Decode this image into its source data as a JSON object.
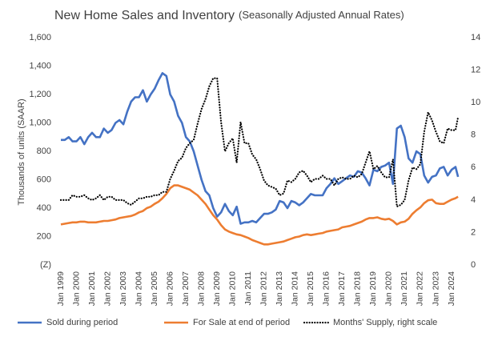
{
  "chart_data": {
    "type": "line",
    "title": "New Home Sales and Inventory",
    "subtitle": "(Seasonally Adjusted Annual Rates)",
    "y_label": "Thousands of units (SAAR)",
    "x": [
      "1999-01",
      "1999-04",
      "1999-07",
      "1999-10",
      "2000-01",
      "2000-04",
      "2000-07",
      "2000-10",
      "2001-01",
      "2001-04",
      "2001-07",
      "2001-10",
      "2002-01",
      "2002-04",
      "2002-07",
      "2002-10",
      "2003-01",
      "2003-04",
      "2003-07",
      "2003-10",
      "2004-01",
      "2004-04",
      "2004-07",
      "2004-10",
      "2005-01",
      "2005-04",
      "2005-07",
      "2005-10",
      "2006-01",
      "2006-04",
      "2006-07",
      "2006-10",
      "2007-01",
      "2007-04",
      "2007-07",
      "2007-10",
      "2008-01",
      "2008-04",
      "2008-07",
      "2008-10",
      "2009-01",
      "2009-04",
      "2009-07",
      "2009-10",
      "2010-01",
      "2010-04",
      "2010-07",
      "2010-10",
      "2011-01",
      "2011-04",
      "2011-07",
      "2011-10",
      "2012-01",
      "2012-04",
      "2012-07",
      "2012-10",
      "2013-01",
      "2013-04",
      "2013-07",
      "2013-10",
      "2014-01",
      "2014-04",
      "2014-07",
      "2014-10",
      "2015-01",
      "2015-04",
      "2015-07",
      "2015-10",
      "2016-01",
      "2016-04",
      "2016-07",
      "2016-10",
      "2017-01",
      "2017-04",
      "2017-07",
      "2017-10",
      "2018-01",
      "2018-04",
      "2018-07",
      "2018-10",
      "2019-01",
      "2019-04",
      "2019-07",
      "2019-10",
      "2020-01",
      "2020-04",
      "2020-07",
      "2020-10",
      "2021-01",
      "2021-04",
      "2021-07",
      "2021-10",
      "2022-01",
      "2022-04",
      "2022-07",
      "2022-10",
      "2023-01",
      "2023-04",
      "2023-07",
      "2023-10",
      "2024-01",
      "2024-04",
      "2024-06"
    ],
    "series": [
      {
        "name": "Sold during period",
        "color": "#4472c4",
        "dash": "solid",
        "values": [
          880,
          880,
          900,
          870,
          870,
          900,
          850,
          900,
          930,
          900,
          900,
          960,
          930,
          950,
          1000,
          1020,
          990,
          1080,
          1150,
          1180,
          1180,
          1230,
          1150,
          1200,
          1240,
          1300,
          1350,
          1330,
          1200,
          1150,
          1050,
          1000,
          900,
          870,
          800,
          700,
          600,
          520,
          490,
          400,
          340,
          370,
          430,
          380,
          350,
          410,
          290,
          300,
          300,
          310,
          300,
          330,
          360,
          360,
          370,
          390,
          450,
          440,
          400,
          450,
          440,
          420,
          440,
          470,
          500,
          490,
          490,
          490,
          540,
          570,
          610,
          570,
          590,
          610,
          630,
          620,
          660,
          650,
          610,
          560,
          670,
          660,
          690,
          700,
          720,
          570,
          960,
          980,
          900,
          750,
          720,
          800,
          780,
          630,
          580,
          620,
          630,
          680,
          690,
          630,
          670,
          690,
          620
        ]
      },
      {
        "name": "For Sale at end of period",
        "color": "#ed7d31",
        "dash": "solid",
        "values": [
          285,
          290,
          295,
          300,
          300,
          305,
          305,
          300,
          300,
          300,
          305,
          310,
          310,
          315,
          320,
          330,
          335,
          340,
          345,
          355,
          370,
          380,
          400,
          410,
          430,
          445,
          470,
          500,
          540,
          560,
          560,
          550,
          540,
          530,
          510,
          490,
          460,
          430,
          390,
          350,
          320,
          280,
          250,
          235,
          225,
          215,
          210,
          200,
          190,
          175,
          165,
          155,
          145,
          145,
          150,
          155,
          160,
          165,
          175,
          185,
          195,
          200,
          210,
          215,
          210,
          215,
          220,
          225,
          235,
          240,
          245,
          250,
          265,
          270,
          275,
          285,
          295,
          305,
          320,
          330,
          330,
          335,
          325,
          320,
          325,
          310,
          285,
          300,
          305,
          325,
          360,
          385,
          405,
          435,
          455,
          460,
          435,
          430,
          430,
          445,
          460,
          470,
          480
        ]
      },
      {
        "name": "Months' Supply, right scale",
        "color": "#000000",
        "dash": "dotted",
        "axis": "y2",
        "values": [
          4.0,
          4.0,
          4.0,
          4.3,
          4.2,
          4.2,
          4.3,
          4.1,
          4.0,
          4.1,
          4.3,
          4.0,
          4.2,
          4.2,
          4.0,
          4.0,
          4.0,
          3.8,
          3.7,
          3.9,
          4.1,
          4.1,
          4.2,
          4.2,
          4.3,
          4.3,
          4.5,
          4.5,
          5.3,
          5.8,
          6.4,
          6.6,
          7.2,
          7.5,
          7.7,
          8.7,
          9.6,
          10.2,
          11.0,
          11.5,
          11.5,
          8.8,
          7.0,
          7.5,
          7.8,
          6.3,
          8.8,
          7.5,
          7.5,
          6.8,
          6.5,
          5.9,
          5.2,
          4.9,
          4.8,
          4.7,
          4.3,
          4.4,
          5.2,
          5.1,
          5.3,
          5.7,
          5.8,
          5.5,
          5.1,
          5.3,
          5.3,
          5.5,
          5.3,
          5.3,
          4.9,
          5.3,
          5.4,
          5.3,
          5.3,
          5.5,
          5.4,
          5.6,
          6.3,
          7.0,
          5.9,
          6.1,
          5.7,
          5.4,
          5.4,
          6.5,
          3.6,
          3.7,
          4.0,
          5.2,
          6.0,
          5.9,
          6.2,
          8.2,
          9.4,
          8.9,
          8.2,
          7.6,
          7.5,
          8.4,
          8.3,
          8.3,
          9.1
        ]
      }
    ],
    "ylim": [
      0,
      1600
    ],
    "yticks": [
      {
        "value": 0,
        "label": "(Z)"
      },
      200,
      400,
      600,
      800,
      {
        "value": 1000,
        "label": "1,000"
      },
      {
        "value": 1200,
        "label": "1,200"
      },
      {
        "value": 1400,
        "label": "1,400"
      },
      {
        "value": 1600,
        "label": "1,600"
      }
    ],
    "y2lim": [
      0,
      14
    ],
    "y2ticks": [
      0,
      2,
      4,
      6,
      8,
      10,
      12,
      14
    ],
    "xticks": [
      {
        "value": "1999-01",
        "label": "Jan 1999"
      },
      {
        "value": "2000-01",
        "label": "Jan 2000"
      },
      {
        "value": "2001-01",
        "label": "Jan 2001"
      },
      {
        "value": "2002-01",
        "label": "Jan 2002"
      },
      {
        "value": "2003-01",
        "label": "Jan 2003"
      },
      {
        "value": "2004-01",
        "label": "Jan 2004"
      },
      {
        "value": "2005-01",
        "label": "Jan 2005"
      },
      {
        "value": "2006-01",
        "label": "Jan 2006"
      },
      {
        "value": "2007-01",
        "label": "Jan 2007"
      },
      {
        "value": "2008-01",
        "label": "Jan 2008"
      },
      {
        "value": "2009-01",
        "label": "Jan 2009"
      },
      {
        "value": "2010-01",
        "label": "Jan 2010"
      },
      {
        "value": "2011-01",
        "label": "Jan 2011"
      },
      {
        "value": "2012-01",
        "label": "Jan 2012"
      },
      {
        "value": "2013-01",
        "label": "Jan 2013"
      },
      {
        "value": "2014-01",
        "label": "Jan 2014"
      },
      {
        "value": "2015-01",
        "label": "Jan 2015"
      },
      {
        "value": "2016-01",
        "label": "Jan 2016"
      },
      {
        "value": "2017-01",
        "label": "Jan 2017"
      },
      {
        "value": "2018-01",
        "label": "Jan 2018"
      },
      {
        "value": "2019-01",
        "label": "Jan 2019"
      },
      {
        "value": "2020-01",
        "label": "Jan 2020"
      },
      {
        "value": "2021-01",
        "label": "Jan 2021"
      },
      {
        "value": "2022-01",
        "label": "Jan 2022"
      },
      {
        "value": "2023-01",
        "label": "Jan 2023"
      },
      {
        "value": "2024-01",
        "label": "Jan 2024"
      }
    ],
    "grid": false,
    "legend": "bottom"
  }
}
